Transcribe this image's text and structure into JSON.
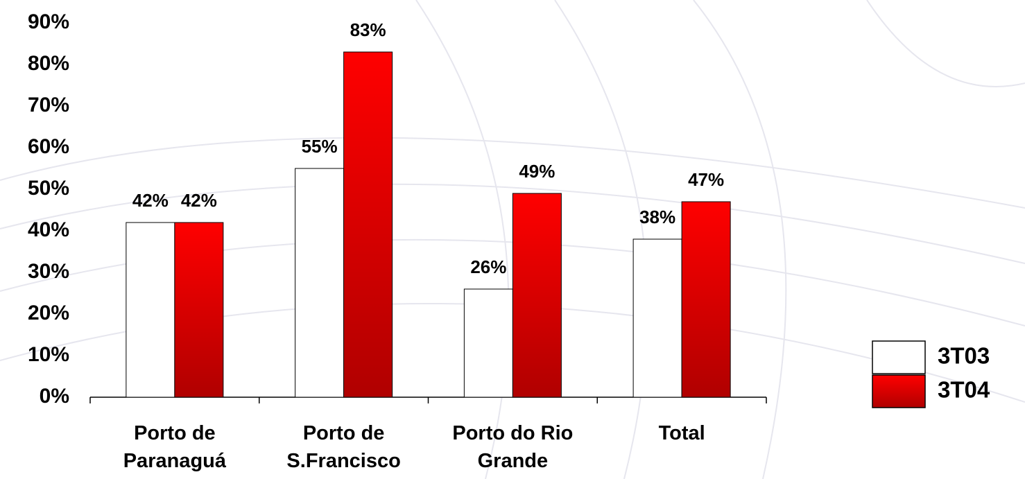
{
  "chart_data": {
    "type": "bar",
    "categories": [
      "Porto de\nParanaguá",
      "Porto de\nS.Francisco",
      "Porto do Rio\nGrande",
      "Total"
    ],
    "series": [
      {
        "name": "3T03",
        "color": "#ffffff",
        "values": [
          42,
          55,
          26,
          38
        ],
        "value_labels": [
          "42%",
          "55%",
          "26%",
          "38%"
        ]
      },
      {
        "name": "3T04",
        "color": "#ff0000",
        "values": [
          42,
          83,
          49,
          47
        ],
        "value_labels": [
          "42%",
          "83%",
          "49%",
          "47%"
        ]
      }
    ],
    "ylim": [
      0,
      90
    ],
    "yticks": [
      {
        "value": 0,
        "label": "0%"
      },
      {
        "value": 10,
        "label": "10%"
      },
      {
        "value": 20,
        "label": "20%"
      },
      {
        "value": 30,
        "label": "30%"
      },
      {
        "value": 40,
        "label": "40%"
      },
      {
        "value": 50,
        "label": "50%"
      },
      {
        "value": 60,
        "label": "60%"
      },
      {
        "value": 70,
        "label": "70%"
      },
      {
        "value": 80,
        "label": "80%"
      },
      {
        "value": 90,
        "label": "90%"
      }
    ],
    "legend": "right"
  }
}
